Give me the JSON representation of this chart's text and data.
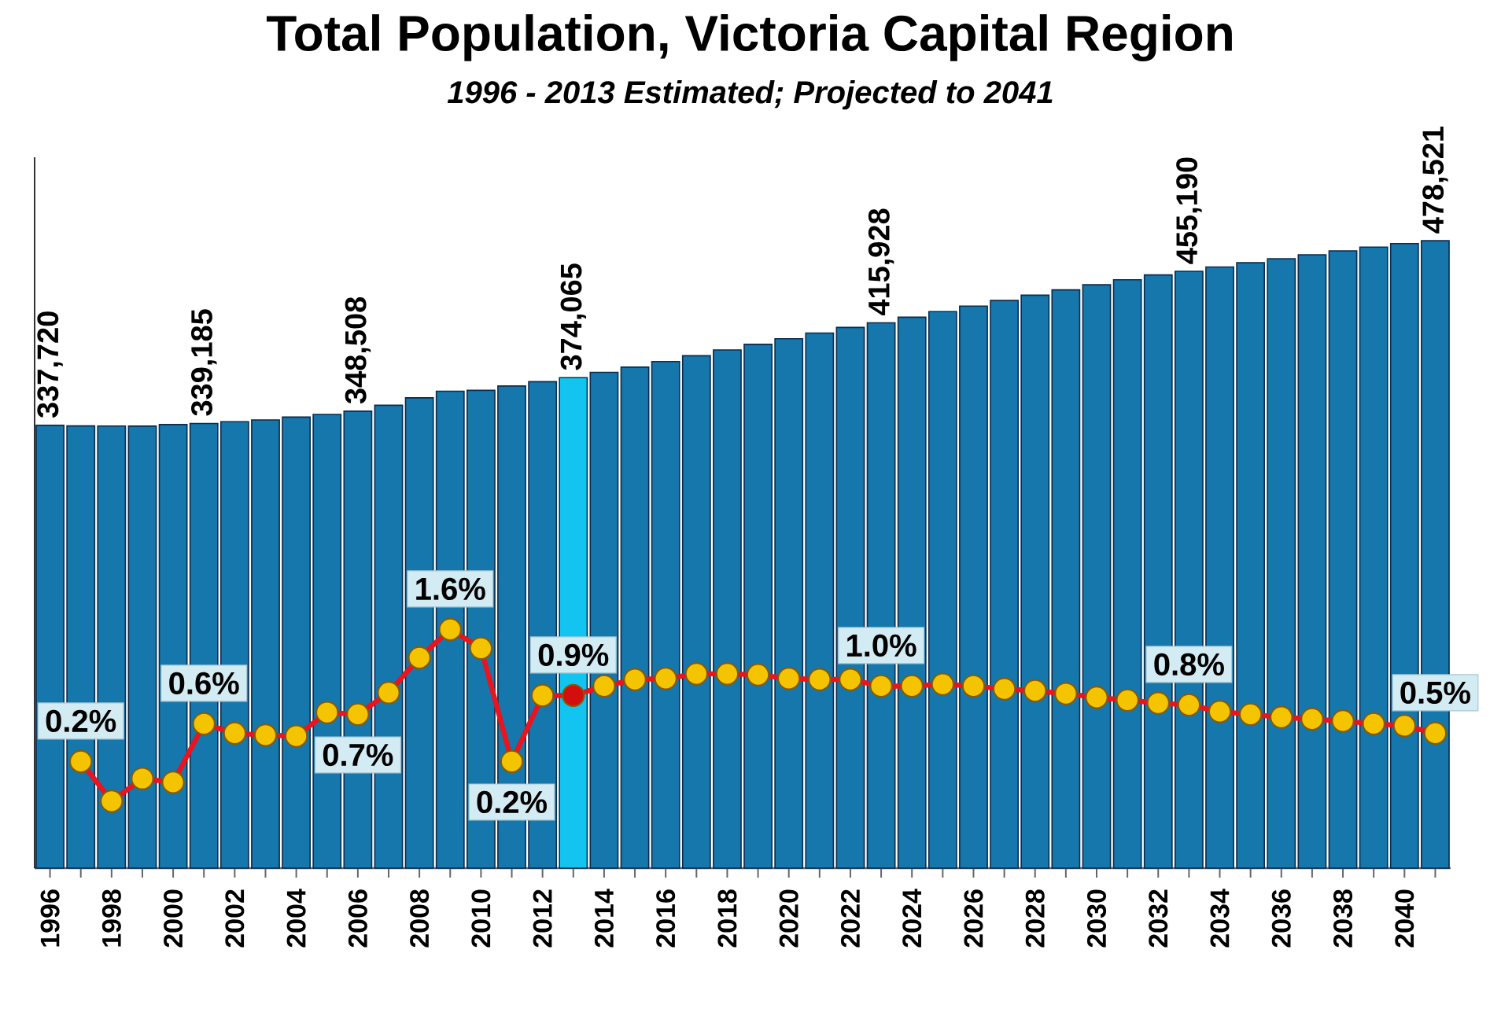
{
  "chart_data": {
    "type": "bar",
    "title": "Total Population, Victoria Capital Region",
    "subtitle": "1996 - 2013 Estimated; Projected to 2041",
    "categories": [
      "1996",
      null,
      "1998",
      null,
      "2000",
      null,
      "2002",
      null,
      "2004",
      null,
      "2006",
      null,
      "2008",
      null,
      "2010",
      null,
      "2012",
      null,
      "2014",
      null,
      "2016",
      null,
      "2018",
      null,
      "2020",
      null,
      "2022",
      null,
      "2024",
      null,
      "2026",
      null,
      "2028",
      null,
      "2030",
      null,
      "2032",
      null,
      "2034",
      null,
      "2036",
      null,
      "2038",
      null,
      "2040",
      null
    ],
    "tick_labels": "x",
    "marker": "circle",
    "series": [
      {
        "color": "#1577ab",
        "colors": [
          null,
          null,
          null,
          null,
          null,
          null,
          null,
          null,
          null,
          null,
          null,
          null,
          null,
          null,
          null,
          null,
          null,
          "#12c4f0",
          null,
          null,
          null,
          null,
          null,
          null,
          null,
          null,
          null,
          null,
          null,
          null,
          null,
          null,
          null,
          null,
          null,
          null,
          null,
          null,
          null,
          null,
          null,
          null,
          null,
          null,
          null,
          null
        ],
        "values": [
          337720,
          337300,
          337200,
          337100,
          338300,
          339185,
          340500,
          341800,
          344000,
          346000,
          348508,
          353000,
          358700,
          363700,
          364400,
          367700,
          371000,
          374065,
          378100,
          382100,
          386400,
          390800,
          395200,
          399500,
          403800,
          408100,
          412400,
          415928,
          420200,
          424500,
          428700,
          432900,
          437000,
          441000,
          444900,
          448700,
          452400,
          455190,
          458500,
          461700,
          464800,
          467800,
          470800,
          473600,
          476300,
          478521
        ],
        "value_labels": [
          "337,720",
          null,
          null,
          null,
          null,
          "339,185",
          null,
          null,
          null,
          null,
          "348,508",
          null,
          null,
          null,
          null,
          null,
          null,
          "374,065",
          null,
          null,
          null,
          null,
          null,
          null,
          null,
          null,
          null,
          "415,928",
          null,
          null,
          null,
          null,
          null,
          null,
          null,
          null,
          null,
          "455,190",
          null,
          null,
          null,
          null,
          null,
          null,
          null,
          "478,521"
        ]
      },
      {
        "type": "line",
        "axis": "y2",
        "color": "#e8141e",
        "colors": [
          null,
          "#f5c400",
          "#f5c400",
          "#f5c400",
          "#f5c400",
          "#f5c400",
          "#f5c400",
          "#f5c400",
          "#f5c400",
          "#f5c400",
          "#f5c400",
          "#f5c400",
          "#f5c400",
          "#f5c400",
          "#f5c400",
          "#f5c400",
          "#f5c400",
          "#d40d0d",
          "#f5c400",
          "#f5c400",
          "#f5c400",
          "#f5c400",
          "#f5c400",
          "#f5c400",
          "#f5c400",
          "#f5c400",
          "#f5c400",
          "#f5c400",
          "#f5c400",
          "#f5c400",
          "#f5c400",
          "#f5c400",
          "#f5c400",
          "#f5c400",
          "#f5c400",
          "#f5c400",
          "#f5c400",
          "#f5c400",
          "#f5c400",
          "#f5c400",
          "#f5c400",
          "#f5c400",
          "#f5c400",
          "#f5c400",
          "#f5c400",
          "#f5c400"
        ],
        "values": [
          null,
          0.2,
          -0.22,
          0.02,
          -0.02,
          0.6,
          0.5,
          0.48,
          0.47,
          0.72,
          0.7,
          0.93,
          1.3,
          1.6,
          1.4,
          0.2,
          0.9,
          0.9,
          1.0,
          1.07,
          1.08,
          1.13,
          1.13,
          1.12,
          1.08,
          1.07,
          1.07,
          1.0,
          1.0,
          1.02,
          1.0,
          0.97,
          0.95,
          0.92,
          0.88,
          0.85,
          0.82,
          0.8,
          0.73,
          0.7,
          0.67,
          0.65,
          0.63,
          0.6,
          0.58,
          0.5
        ],
        "value_labels": [
          null,
          "0.2%",
          null,
          null,
          null,
          "0.6%",
          null,
          null,
          null,
          null,
          "0.7%",
          null,
          null,
          "1.6%",
          null,
          "0.2%",
          null,
          "0.9%",
          null,
          null,
          null,
          null,
          null,
          null,
          null,
          null,
          null,
          "1.0%",
          null,
          null,
          null,
          null,
          null,
          null,
          null,
          null,
          null,
          "0.8%",
          null,
          null,
          null,
          null,
          null,
          null,
          null,
          "0.5%"
        ]
      }
    ]
  }
}
